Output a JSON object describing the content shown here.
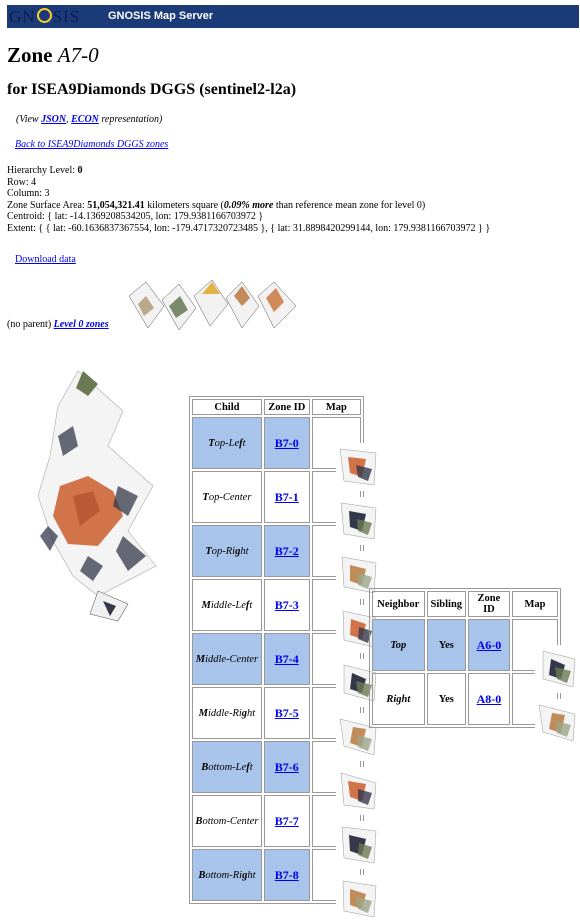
{
  "header": {
    "logo_text": "GN SIS",
    "app_title": "GNOSIS Map Server",
    "brand_color": "#1b3a78"
  },
  "zone": {
    "title_prefix": "Zone",
    "zone_id": "A7-0",
    "subtitle": "for ISEA9Diamonds DGGS (sentinel2-l2a)"
  },
  "representations": {
    "prefix": "(View",
    "json_link": "JSON",
    "sep": ",",
    "econ_link": "ECON",
    "suffix": "representation)"
  },
  "back_link": "Back to ISEA9Diamonds DGGS zones",
  "info": {
    "hierarchy_level_label": "Hierarchy Level:",
    "hierarchy_level": "0",
    "row": "Row: 4",
    "column": "Column: 3",
    "area_label": "Zone Surface Area:",
    "area_value": "51,054,321.41",
    "area_units": "kilometers square (",
    "area_delta": "0.09% more",
    "area_suffix": "than reference mean zone for level 0)",
    "centroid": "Centroid: { lat: -14.1369208534205, lon: 179.9381166703972 }",
    "extent": "Extent: { { lat: -60.1636837367554, lon: -179.4717320723485 }, { lat: 31.8898420299144, lon: 179.9381166703972 } }"
  },
  "download_link": "Download data",
  "parent": {
    "no_parent": "(no parent)",
    "level_link": "Level 0 zones"
  },
  "children_table": {
    "headers": [
      "Child",
      "Zone ID",
      "Map"
    ],
    "rows": [
      {
        "pre": "T",
        "label": "op-Le",
        "b2": "f",
        "post": "t",
        "zone_id": "B7-0"
      },
      {
        "pre": "T",
        "label": "op-Center",
        "b2": "",
        "post": "",
        "zone_id": "B7-1"
      },
      {
        "pre": "T",
        "label": "op-Ri",
        "b2": "g",
        "post": "ht",
        "zone_id": "B7-2"
      },
      {
        "pre": "M",
        "label": "iddle-Le",
        "b2": "f",
        "post": "t",
        "zone_id": "B7-3"
      },
      {
        "pre": "M",
        "label": "iddle-Center",
        "b2": "",
        "post": "",
        "zone_id": "B7-4"
      },
      {
        "pre": "M",
        "label": "iddle-Ri",
        "b2": "g",
        "post": "ht",
        "zone_id": "B7-5"
      },
      {
        "pre": "B",
        "label": "ottom-Le",
        "b2": "f",
        "post": "t",
        "zone_id": "B7-6"
      },
      {
        "pre": "B",
        "label": "ottom-Center",
        "b2": "",
        "post": "",
        "zone_id": "B7-7"
      },
      {
        "pre": "B",
        "label": "ottom-Ri",
        "b2": "g",
        "post": "ht",
        "zone_id": "B7-8"
      }
    ]
  },
  "neighbors_table": {
    "headers": [
      "Neighbor",
      "Sibling",
      "Zone ID",
      "Map"
    ],
    "rows": [
      {
        "label": "Top",
        "sibling": "Yes",
        "zone_id": "A6-0"
      },
      {
        "label": "Right",
        "sibling": "Yes",
        "zone_id": "A8-0"
      }
    ]
  },
  "colors": {
    "highlight_cell": "#a8c4ea",
    "link": "#0000ee",
    "terrain_orange": "#d2744a",
    "cloud_white": "#f4f4f4",
    "dark_patch": "#34384a"
  }
}
